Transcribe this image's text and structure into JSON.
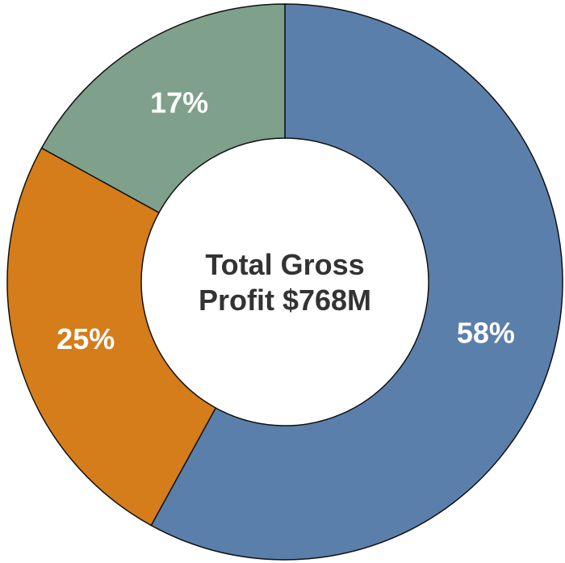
{
  "chart_data": {
    "type": "donut",
    "center_label": "Total Gross Profit $768M",
    "values": [
      58,
      25,
      17
    ],
    "value_labels": [
      "58%",
      "25%",
      "17%"
    ],
    "colors": [
      "#5b7fab",
      "#d57d1a",
      "#7fa08b"
    ]
  }
}
